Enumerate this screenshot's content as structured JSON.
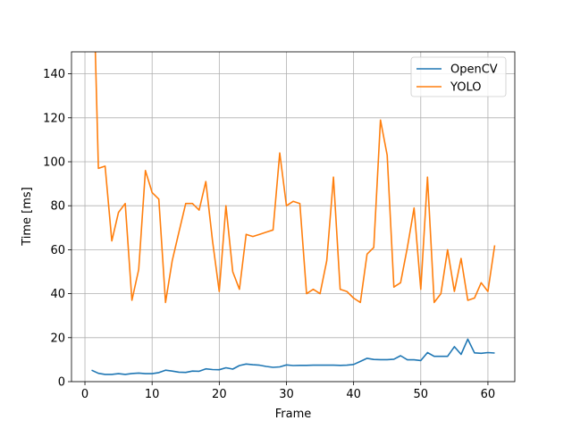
{
  "chart_data": {
    "type": "line",
    "title": "",
    "xlabel": "Frame",
    "ylabel": "Time [ms]",
    "xlim": [
      -2,
      64
    ],
    "ylim": [
      0,
      150
    ],
    "xticks": [
      0,
      10,
      20,
      30,
      40,
      50,
      60
    ],
    "yticks": [
      0,
      20,
      40,
      60,
      80,
      100,
      120,
      140
    ],
    "grid": true,
    "legend_position": "top-right",
    "series": [
      {
        "name": "OpenCV",
        "color": "#1f77b4",
        "x": [
          1,
          2,
          3,
          4,
          5,
          6,
          7,
          8,
          9,
          10,
          11,
          12,
          13,
          14,
          15,
          16,
          17,
          18,
          19,
          20,
          21,
          22,
          23,
          24,
          25,
          26,
          27,
          28,
          29,
          30,
          31,
          32,
          33,
          34,
          35,
          36,
          37,
          38,
          39,
          40,
          41,
          42,
          43,
          44,
          45,
          46,
          47,
          48,
          49,
          50,
          51,
          52,
          53,
          54,
          55,
          56,
          57,
          58,
          59,
          60,
          61
        ],
        "y": [
          5.2,
          3.8,
          3.3,
          3.3,
          3.6,
          3.3,
          3.7,
          3.9,
          3.6,
          3.6,
          4.1,
          5.2,
          4.8,
          4.3,
          4.2,
          4.8,
          4.7,
          5.8,
          5.5,
          5.4,
          6.3,
          5.7,
          7.3,
          8.0,
          7.7,
          7.5,
          6.9,
          6.5,
          6.7,
          7.6,
          7.3,
          7.4,
          7.4,
          7.5,
          7.5,
          7.5,
          7.5,
          7.4,
          7.5,
          7.8,
          9.2,
          10.6,
          10.1,
          10.0,
          10.0,
          10.2,
          11.8,
          9.9,
          9.9,
          9.6,
          13.2,
          11.5,
          11.5,
          11.5,
          15.9,
          12.4,
          19.3,
          13.1,
          12.9,
          13.2,
          13.0
        ]
      },
      {
        "name": "YOLO",
        "color": "#ff7f0e",
        "x": [
          1,
          2,
          3,
          4,
          5,
          6,
          7,
          8,
          9,
          10,
          11,
          12,
          13,
          14,
          15,
          16,
          17,
          18,
          19,
          20,
          21,
          22,
          23,
          24,
          25,
          26,
          27,
          28,
          29,
          30,
          31,
          32,
          33,
          34,
          35,
          36,
          37,
          38,
          39,
          40,
          41,
          42,
          43,
          44,
          45,
          46,
          47,
          48,
          49,
          50,
          51,
          52,
          53,
          54,
          55,
          56,
          57,
          58,
          59,
          60,
          61
        ],
        "y": [
          215,
          97,
          98,
          64,
          77,
          81,
          37,
          51,
          96,
          86,
          83,
          36,
          55,
          68,
          81,
          81,
          78,
          91,
          64,
          41,
          80,
          50,
          42,
          67,
          66,
          67,
          68,
          69,
          104,
          80,
          82,
          81,
          40,
          42,
          40,
          55,
          93,
          42,
          41,
          38,
          36,
          58,
          61,
          119,
          103,
          43,
          45,
          61,
          79,
          42,
          93,
          36,
          40,
          60,
          41,
          56,
          37,
          38,
          45,
          41,
          62
        ]
      }
    ]
  }
}
